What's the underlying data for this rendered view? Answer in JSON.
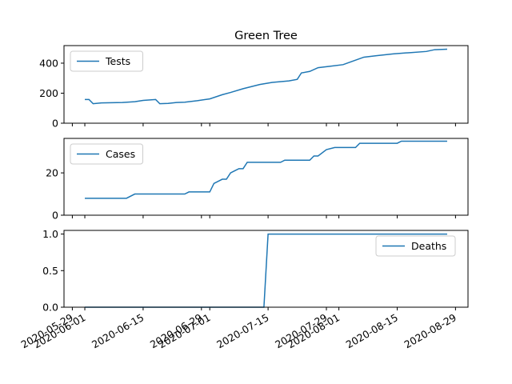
{
  "chart_data": [
    {
      "type": "line",
      "title": "Green Tree",
      "legend": "upper left",
      "x": [
        "2020-06-01",
        "2020-06-02",
        "2020-06-03",
        "2020-06-05",
        "2020-06-10",
        "2020-06-13",
        "2020-06-15",
        "2020-06-18",
        "2020-06-19",
        "2020-06-21",
        "2020-06-23",
        "2020-06-25",
        "2020-06-28",
        "2020-07-01",
        "2020-07-04",
        "2020-07-06",
        "2020-07-09",
        "2020-07-13",
        "2020-07-16",
        "2020-07-20",
        "2020-07-22",
        "2020-07-23",
        "2020-07-25",
        "2020-07-27",
        "2020-07-30",
        "2020-08-02",
        "2020-08-04",
        "2020-08-07",
        "2020-08-10",
        "2020-08-14",
        "2020-08-18",
        "2020-08-22",
        "2020-08-24",
        "2020-08-27"
      ],
      "series": [
        {
          "name": "Tests",
          "color": "#1f77b4",
          "values": [
            158,
            158,
            130,
            135,
            138,
            143,
            152,
            158,
            130,
            132,
            138,
            140,
            150,
            162,
            190,
            205,
            230,
            258,
            272,
            282,
            292,
            335,
            345,
            370,
            380,
            390,
            410,
            440,
            450,
            462,
            470,
            478,
            490,
            493
          ]
        }
      ],
      "ylim": [
        0,
        517
      ],
      "yticks": [
        0,
        200,
        400
      ]
    },
    {
      "type": "line",
      "legend": "upper left",
      "x": [
        "2020-06-01",
        "2020-06-11",
        "2020-06-13",
        "2020-06-25",
        "2020-06-26",
        "2020-07-01",
        "2020-07-02",
        "2020-07-03",
        "2020-07-04",
        "2020-07-05",
        "2020-07-06",
        "2020-07-07",
        "2020-07-08",
        "2020-07-09",
        "2020-07-10",
        "2020-07-18",
        "2020-07-19",
        "2020-07-25",
        "2020-07-26",
        "2020-07-27",
        "2020-07-29",
        "2020-07-31",
        "2020-08-05",
        "2020-08-06",
        "2020-08-15",
        "2020-08-16",
        "2020-08-27"
      ],
      "series": [
        {
          "name": "Cases",
          "color": "#1f77b4",
          "values": [
            8,
            8,
            10,
            10,
            11,
            11,
            15,
            16,
            17,
            17,
            20,
            21,
            22,
            22,
            25,
            25,
            26,
            26,
            28,
            28,
            31,
            32,
            32,
            34,
            34,
            35,
            35
          ]
        }
      ],
      "ylim": [
        0,
        36.3
      ],
      "yticks": [
        0,
        20
      ]
    },
    {
      "type": "line",
      "legend": "upper right",
      "x": [
        "2020-06-01",
        "2020-07-14",
        "2020-07-15",
        "2020-08-27"
      ],
      "series": [
        {
          "name": "Deaths",
          "color": "#1f77b4",
          "values": [
            0,
            0,
            1,
            1
          ]
        }
      ],
      "ylim": [
        0,
        1.05
      ],
      "yticks": [
        {
          "value": 0,
          "label": "0.0"
        },
        {
          "value": 0.5,
          "label": "0.5"
        },
        {
          "value": 1,
          "label": "1.0"
        }
      ],
      "xlim": [
        "2020-05-27",
        "2020-09-01"
      ],
      "xticks": [
        "2020-05-29",
        "2020-06-01",
        "2020-06-15",
        "2020-06-29",
        "2020-07-01",
        "2020-07-15",
        "2020-07-29",
        "2020-08-01",
        "2020-08-15",
        "2020-08-29"
      ]
    }
  ]
}
